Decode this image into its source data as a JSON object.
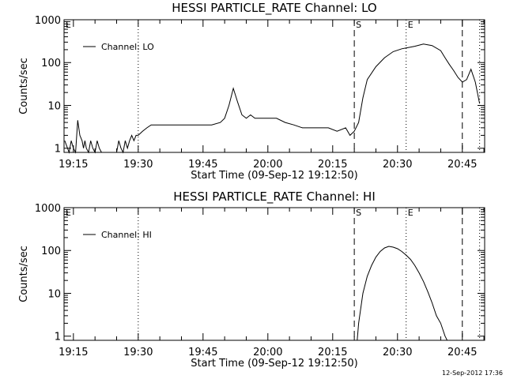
{
  "footer_stamp": "12-Sep-2012 17:36",
  "chart_data": [
    {
      "type": "line",
      "title": "HESSI PARTICLE_RATE Channel: LO",
      "xlabel": "Start Time (09-Sep-12 19:12:50)",
      "ylabel": "Counts/sec",
      "xlim": [
        "19:12:50",
        "20:50:10"
      ],
      "ylim": [
        0.8,
        1000
      ],
      "y_scale": "log",
      "x_ticks": [
        "19:15",
        "19:30",
        "19:45",
        "20:00",
        "20:15",
        "20:30",
        "20:45"
      ],
      "y_ticks": [
        "1",
        "10",
        "100",
        "1000"
      ],
      "legend": {
        "position": "top-left",
        "entries": [
          "Channel: LO"
        ]
      },
      "markers": [
        {
          "time": "19:12:50",
          "style": "dotted",
          "label": "E"
        },
        {
          "time": "19:30",
          "style": "dotted",
          "label": ""
        },
        {
          "time": "20:20",
          "style": "dashed",
          "label": "S"
        },
        {
          "time": "20:32",
          "style": "dotted",
          "label": "E"
        },
        {
          "time": "20:45",
          "style": "dashed",
          "label": ""
        },
        {
          "time": "20:49",
          "style": "dotted",
          "label": ""
        }
      ],
      "series": [
        {
          "x": [
            "19:13",
            "19:14",
            "19:14:30",
            "19:15",
            "19:15:30",
            "19:16",
            "19:16:30",
            "19:17",
            "19:17:20",
            "19:17:40",
            "19:18",
            "19:18:30",
            "19:19",
            "19:19:30",
            "19:20",
            "19:20:30",
            "19:21",
            "19:21:30",
            "19:22",
            "19:22:30",
            "19:23",
            "19:23:30",
            "19:24",
            "19:24:30",
            "19:25",
            "19:25:30",
            "19:26",
            "19:26:30",
            "19:27",
            "19:27:30",
            "19:28",
            "19:28:30",
            "19:29",
            "19:29:30",
            "19:30",
            "19:31",
            "19:32",
            "19:33",
            "19:35",
            "19:37",
            "19:39",
            "19:41",
            "19:43",
            "19:45",
            "19:47",
            "19:49",
            "19:50",
            "19:51",
            "19:52",
            "19:53",
            "19:54",
            "19:55",
            "19:56",
            "19:57",
            "19:58",
            "20:00",
            "20:02",
            "20:04",
            "20:06",
            "20:08",
            "20:10",
            "20:12",
            "20:14",
            "20:16",
            "20:18",
            "20:19",
            "20:20",
            "20:21",
            "20:22",
            "20:23",
            "20:25",
            "20:27",
            "20:29",
            "20:31",
            "20:32",
            "20:34",
            "20:36",
            "20:38",
            "20:40",
            "20:41",
            "20:42",
            "20:43",
            "20:44",
            "20:45",
            "20:46",
            "20:47",
            "20:48",
            "20:49"
          ],
          "y": [
            1.5,
            0.8,
            1.5,
            1,
            0.8,
            4.5,
            2,
            1.5,
            1,
            1.5,
            1,
            0.8,
            1.5,
            1,
            0.8,
            1.5,
            1,
            0.8,
            0.8,
            0.8,
            0.8,
            0.8,
            0.8,
            0.8,
            0.8,
            1.5,
            1,
            0.8,
            1.5,
            1,
            1.5,
            2,
            1.5,
            2,
            2,
            2.5,
            3,
            3.5,
            3.5,
            3.5,
            3.5,
            3.5,
            3.5,
            3.5,
            3.5,
            4,
            5,
            10,
            25,
            12,
            6,
            5,
            6,
            5,
            5,
            5,
            5,
            4,
            3.5,
            3,
            3,
            3,
            3,
            2.5,
            3,
            2,
            2.5,
            4,
            15,
            40,
            80,
            130,
            180,
            210,
            220,
            240,
            270,
            250,
            190,
            130,
            90,
            65,
            45,
            35,
            40,
            70,
            35,
            11
          ]
        }
      ]
    },
    {
      "type": "line",
      "title": "HESSI PARTICLE_RATE Channel: HI",
      "xlabel": "Start Time (09-Sep-12 19:12:50)",
      "ylabel": "Counts/sec",
      "xlim": [
        "19:12:50",
        "20:50:10"
      ],
      "ylim": [
        0.8,
        1000
      ],
      "y_scale": "log",
      "x_ticks": [
        "19:15",
        "19:30",
        "19:45",
        "20:00",
        "20:15",
        "20:30",
        "20:45"
      ],
      "y_ticks": [
        "1",
        "10",
        "100",
        "1000"
      ],
      "legend": {
        "position": "top-left",
        "entries": [
          "Channel: HI"
        ]
      },
      "markers": [
        {
          "time": "19:12:50",
          "style": "dotted",
          "label": "E"
        },
        {
          "time": "19:30",
          "style": "dotted",
          "label": ""
        },
        {
          "time": "20:20",
          "style": "dashed",
          "label": "S"
        },
        {
          "time": "20:32",
          "style": "dotted",
          "label": "E"
        },
        {
          "time": "20:45",
          "style": "dashed",
          "label": ""
        },
        {
          "time": "20:49",
          "style": "dotted",
          "label": ""
        }
      ],
      "series": [
        {
          "x": [
            "20:20:40",
            "20:21",
            "20:22",
            "20:23",
            "20:24",
            "20:25",
            "20:26",
            "20:27",
            "20:28",
            "20:29",
            "20:30",
            "20:31",
            "20:32",
            "20:33",
            "20:34",
            "20:35",
            "20:36",
            "20:37",
            "20:38",
            "20:39",
            "20:40",
            "20:41",
            "20:41:30"
          ],
          "y": [
            0.8,
            2,
            10,
            25,
            45,
            70,
            95,
            115,
            125,
            120,
            110,
            95,
            78,
            62,
            45,
            30,
            19,
            11,
            6,
            3,
            2,
            1,
            0.8
          ]
        }
      ]
    }
  ]
}
